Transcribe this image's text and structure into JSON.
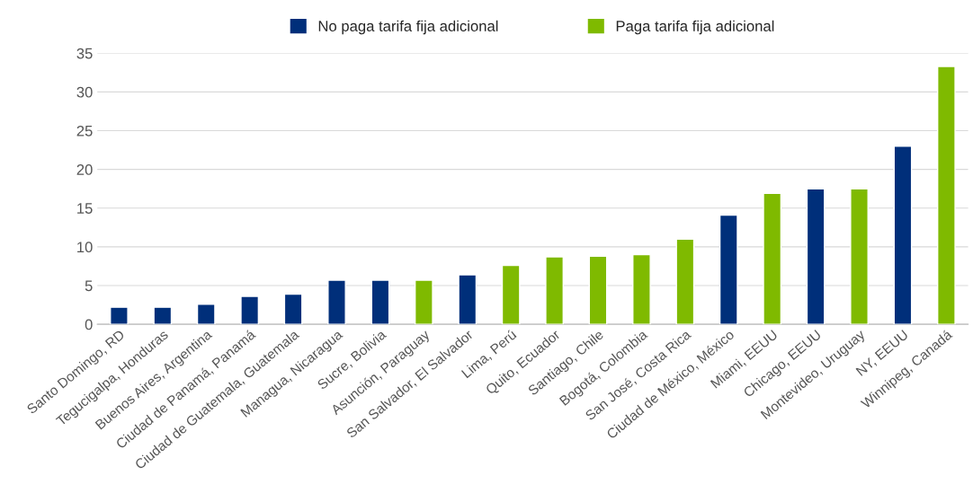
{
  "chart_data": {
    "type": "bar",
    "categories": [
      "Santo Domingo, RD",
      "Tegucigalpa, Honduras",
      "Buenos Aires, Argentina",
      "Ciudad de Panamá, Panamá",
      "Ciudad de Guatemala, Guatemala",
      "Managua, Nicaragua",
      "Sucre, Bolivia",
      "Asunción, Paraguay",
      "San Salvador, El Salvador",
      "Lima, Perú",
      "Quito, Ecuador",
      "Santiago, Chile",
      "Bogotá, Colombia",
      "San José, Costa Rica",
      "Ciudad de México, México",
      "Miami, EEUU",
      "Chicago, EEUU",
      "Montevideo, Uruguay",
      "NY, EEUU",
      "Winnipeg, Canadá"
    ],
    "series": [
      {
        "name": "No paga tarifa fija adicional",
        "color": "#002f7a",
        "values": [
          2.2,
          2.2,
          2.6,
          3.6,
          3.9,
          5.7,
          5.7,
          null,
          6.4,
          null,
          null,
          null,
          null,
          null,
          14.1,
          null,
          17.5,
          null,
          23.0,
          null
        ]
      },
      {
        "name": "Paga tarifa fija adicional",
        "color": "#7fba00",
        "values": [
          null,
          null,
          null,
          null,
          null,
          null,
          null,
          5.7,
          null,
          7.6,
          8.7,
          8.8,
          9.0,
          11.0,
          null,
          16.9,
          null,
          17.5,
          null,
          33.3
        ]
      }
    ],
    "ylim": [
      0,
      35
    ],
    "yticks": [
      0,
      5,
      10,
      15,
      20,
      25,
      30,
      35
    ],
    "grid": "y",
    "legend": "top"
  }
}
